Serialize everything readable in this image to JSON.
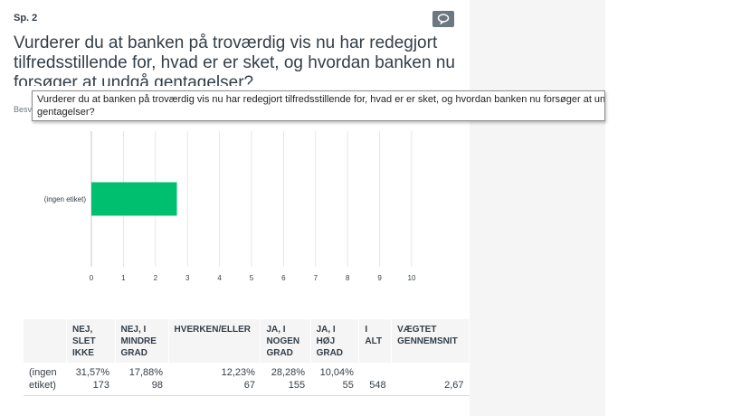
{
  "question": {
    "number": "Sp. 2",
    "title": "Vurderer du at banken på troværdig vis nu har redegjort tilfredsstillende for, hvad er er sket, og hvordan banken nu forsøger at undgå gentagelser?",
    "answered_prefix": "Besv",
    "comment_icon": "speech-bubble-icon"
  },
  "tooltip": {
    "text": "Vurderer du at banken på troværdig vis nu har redegjort tilfredsstillende for, hvad er er sket, og hvordan banken nu forsøger at undgå gentagelser?"
  },
  "chart_data": {
    "type": "bar",
    "orientation": "horizontal",
    "categories": [
      "(ingen etiket)"
    ],
    "values": [
      2.67
    ],
    "xlim": [
      0,
      10
    ],
    "xticks": [
      "0",
      "1",
      "2",
      "3",
      "4",
      "5",
      "6",
      "7",
      "8",
      "9",
      "10"
    ],
    "bar_color": "#00bf6f",
    "grid": true
  },
  "table": {
    "headers": [
      [
        "NEJ,",
        "SLET",
        "IKKE"
      ],
      [
        "NEJ, I",
        "MINDRE",
        "GRAD"
      ],
      [
        "HVERKEN/ELLER"
      ],
      [
        "JA, I",
        "NOGEN",
        "GRAD"
      ],
      [
        "JA, I",
        "HØJ",
        "GRAD"
      ],
      [
        "I",
        "ALT"
      ],
      [
        "VÆGTET",
        "GENNEMSNIT"
      ]
    ],
    "row": {
      "label": [
        "(ingen",
        "etiket)"
      ],
      "percents": [
        "31,57%",
        "17,88%",
        "12,23%",
        "28,28%",
        "10,04%"
      ],
      "counts": [
        "173",
        "98",
        "67",
        "155",
        "55"
      ],
      "total": "548",
      "weighted_avg": "2,67"
    }
  }
}
